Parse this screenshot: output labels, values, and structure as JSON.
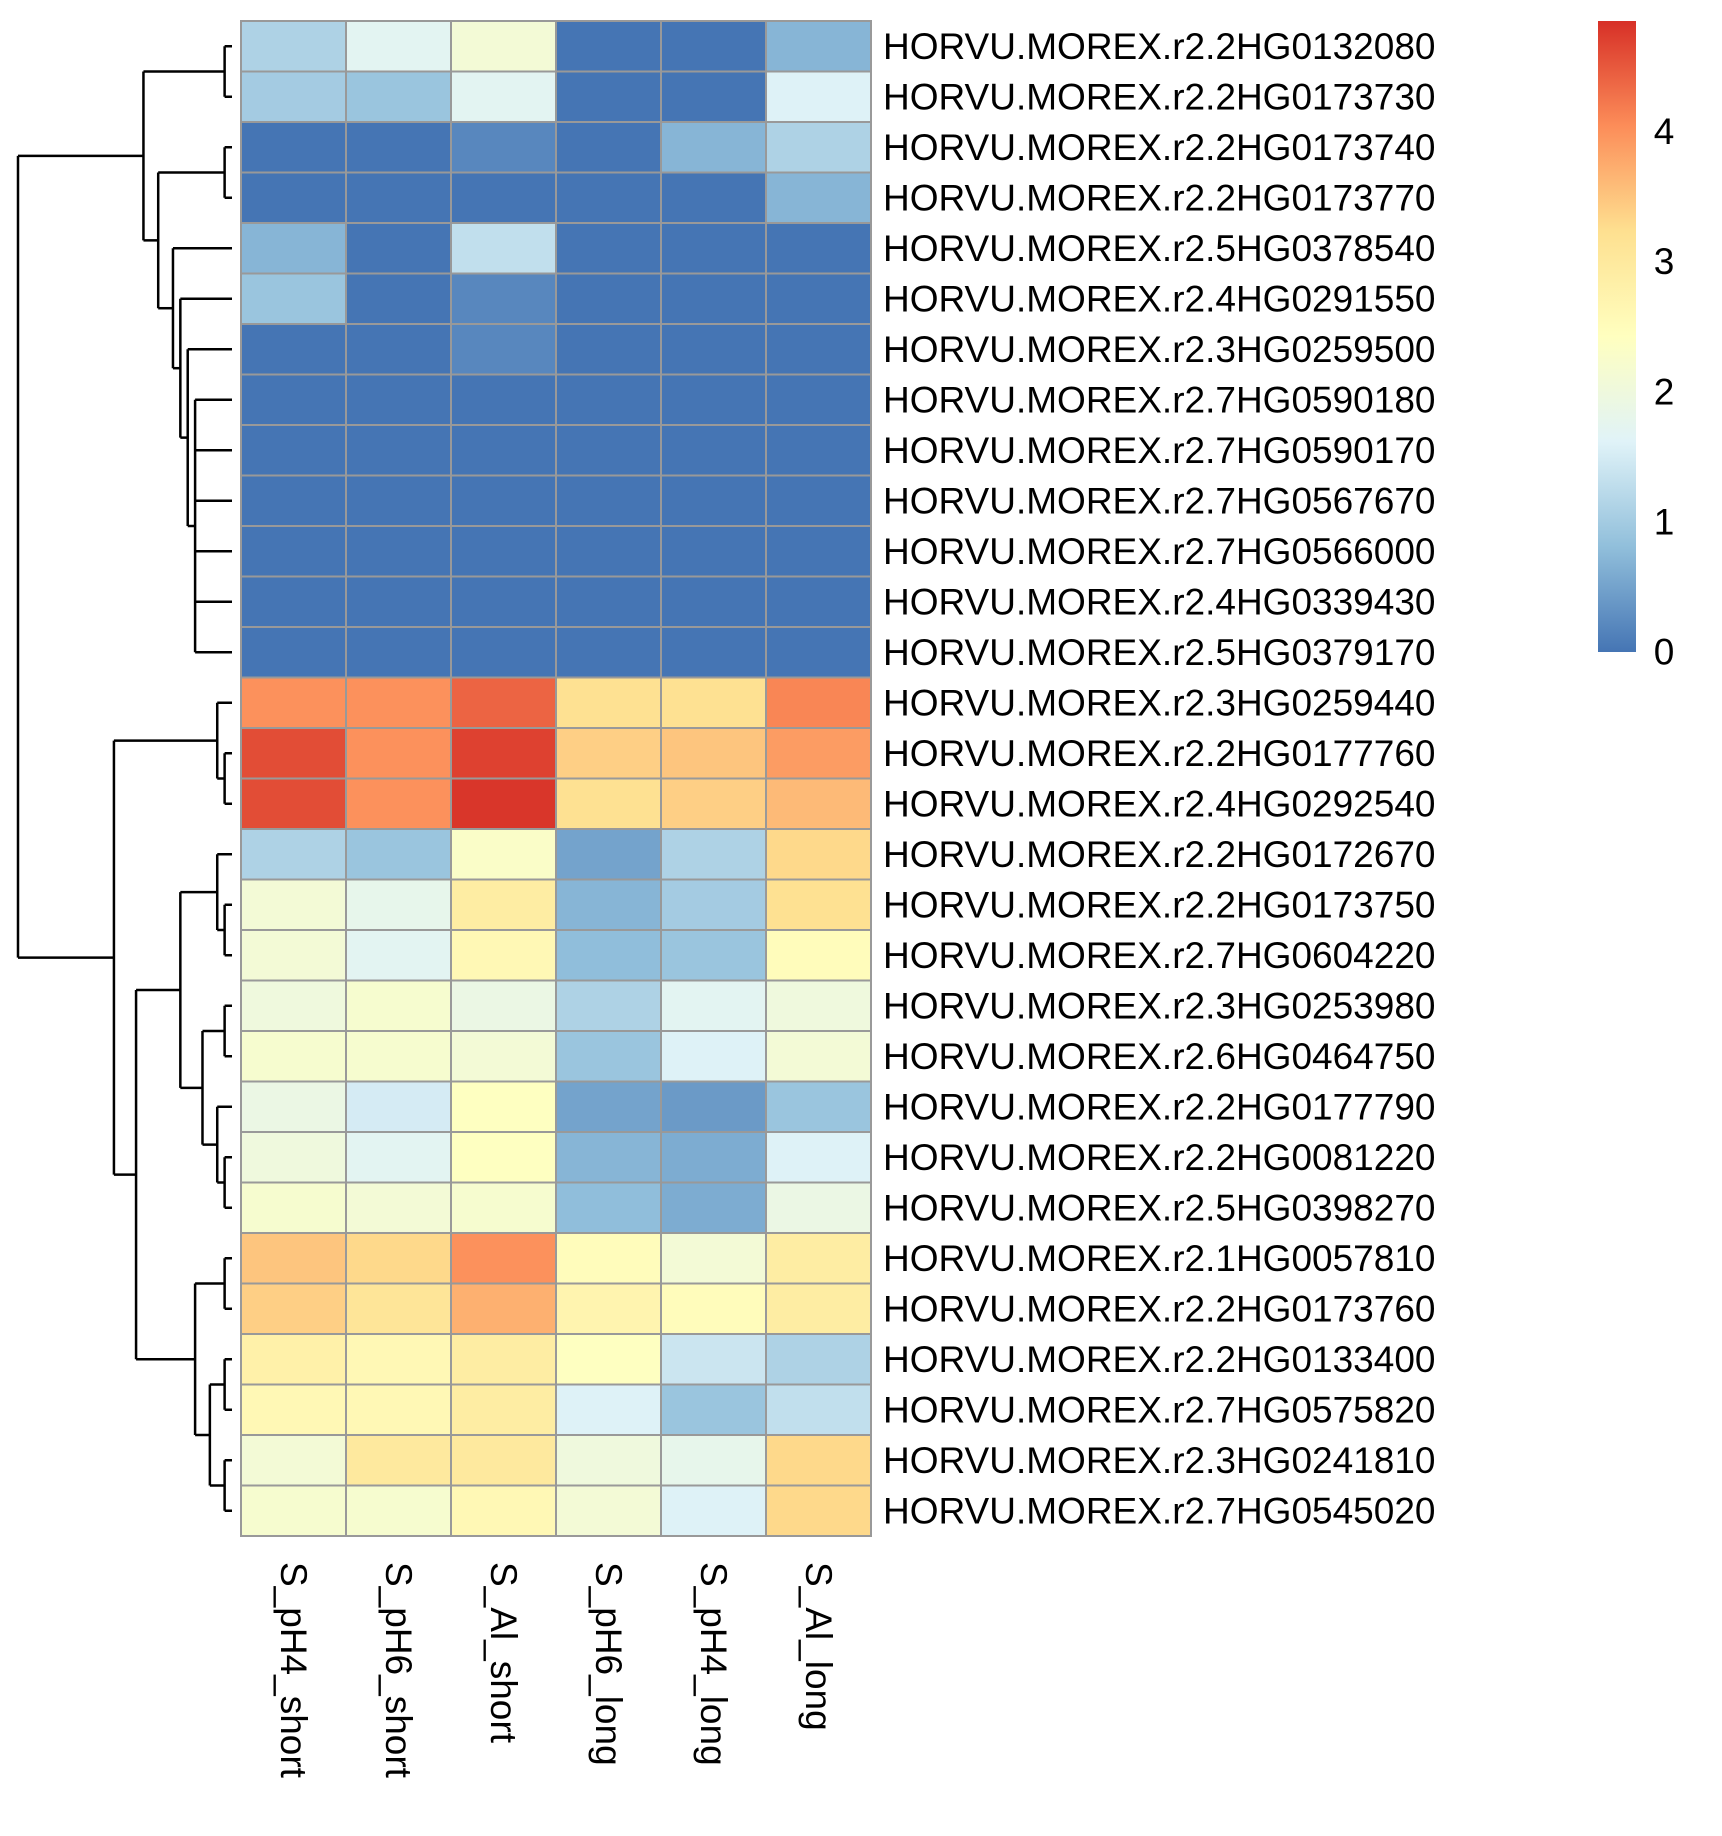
{
  "chart_data": {
    "type": "heatmap",
    "title": "",
    "xlabel": "",
    "ylabel": "",
    "columns": [
      "S_pH4_short",
      "S_pH6_short",
      "S_Al_short",
      "S_pH6_long",
      "S_pH4_long",
      "S_Al_long"
    ],
    "rows": [
      "HORVU.MOREX.r2.2HG0132080",
      "HORVU.MOREX.r2.2HG0173730",
      "HORVU.MOREX.r2.2HG0173740",
      "HORVU.MOREX.r2.2HG0173770",
      "HORVU.MOREX.r2.5HG0378540",
      "HORVU.MOREX.r2.4HG0291550",
      "HORVU.MOREX.r2.3HG0259500",
      "HORVU.MOREX.r2.7HG0590180",
      "HORVU.MOREX.r2.7HG0590170",
      "HORVU.MOREX.r2.7HG0567670",
      "HORVU.MOREX.r2.7HG0566000",
      "HORVU.MOREX.r2.4HG0339430",
      "HORVU.MOREX.r2.5HG0379170",
      "HORVU.MOREX.r2.3HG0259440",
      "HORVU.MOREX.r2.2HG0177760",
      "HORVU.MOREX.r2.4HG0292540",
      "HORVU.MOREX.r2.2HG0172670",
      "HORVU.MOREX.r2.2HG0173750",
      "HORVU.MOREX.r2.7HG0604220",
      "HORVU.MOREX.r2.3HG0253980",
      "HORVU.MOREX.r2.6HG0464750",
      "HORVU.MOREX.r2.2HG0177790",
      "HORVU.MOREX.r2.2HG0081220",
      "HORVU.MOREX.r2.5HG0398270",
      "HORVU.MOREX.r2.1HG0057810",
      "HORVU.MOREX.r2.2HG0173760",
      "HORVU.MOREX.r2.2HG0133400",
      "HORVU.MOREX.r2.7HG0575820",
      "HORVU.MOREX.r2.3HG0241810",
      "HORVU.MOREX.r2.7HG0545020"
    ],
    "values": [
      [
        1.1,
        1.7,
        2.1,
        0.0,
        0.0,
        0.7
      ],
      [
        1.0,
        0.9,
        1.7,
        0.0,
        0.0,
        1.6
      ],
      [
        0.0,
        0.0,
        0.2,
        0.0,
        0.7,
        1.1
      ],
      [
        0.0,
        0.0,
        0.0,
        0.0,
        0.0,
        0.7
      ],
      [
        0.7,
        0.0,
        1.3,
        0.0,
        0.0,
        0.0
      ],
      [
        0.9,
        0.0,
        0.2,
        0.0,
        0.0,
        0.0
      ],
      [
        0.0,
        0.0,
        0.2,
        0.0,
        0.0,
        0.0
      ],
      [
        0.0,
        0.0,
        0.0,
        0.0,
        0.0,
        0.0
      ],
      [
        0.0,
        0.0,
        0.0,
        0.0,
        0.0,
        0.0
      ],
      [
        0.0,
        0.0,
        0.0,
        0.0,
        0.0,
        0.0
      ],
      [
        0.0,
        0.0,
        0.0,
        0.0,
        0.0,
        0.0
      ],
      [
        0.0,
        0.0,
        0.0,
        0.0,
        0.0,
        0.0
      ],
      [
        0.0,
        0.0,
        0.0,
        0.0,
        0.0,
        0.0
      ],
      [
        4.0,
        4.0,
        4.4,
        3.2,
        3.2,
        4.1
      ],
      [
        4.6,
        4.0,
        4.7,
        3.4,
        3.5,
        3.9
      ],
      [
        4.6,
        4.0,
        4.8,
        3.2,
        3.4,
        3.6
      ],
      [
        1.1,
        0.9,
        2.3,
        0.5,
        1.1,
        3.3
      ],
      [
        2.1,
        1.8,
        2.9,
        0.7,
        1.0,
        3.2
      ],
      [
        2.1,
        1.7,
        2.6,
        0.8,
        0.9,
        2.5
      ],
      [
        2.0,
        2.2,
        1.9,
        1.1,
        1.7,
        2.0
      ],
      [
        2.2,
        2.2,
        2.1,
        0.9,
        1.6,
        2.1
      ],
      [
        1.9,
        1.5,
        2.4,
        0.5,
        0.4,
        0.9
      ],
      [
        2.0,
        1.7,
        2.4,
        0.7,
        0.6,
        1.6
      ],
      [
        2.2,
        2.1,
        2.2,
        0.8,
        0.6,
        1.9
      ],
      [
        3.5,
        3.3,
        4.0,
        2.5,
        2.1,
        2.9
      ],
      [
        3.4,
        3.1,
        3.7,
        2.7,
        2.5,
        2.9
      ],
      [
        2.8,
        2.6,
        2.9,
        2.4,
        1.4,
        1.1
      ],
      [
        2.6,
        2.6,
        2.9,
        1.6,
        0.9,
        1.3
      ],
      [
        2.1,
        3.0,
        3.0,
        2.0,
        1.8,
        3.3
      ],
      [
        2.2,
        2.2,
        2.6,
        2.1,
        1.6,
        3.3
      ]
    ],
    "colorbar": {
      "min": 0,
      "max": 4.85,
      "ticks": [
        0,
        1,
        2,
        3,
        4
      ],
      "tick_labels": [
        "0",
        "1",
        "2",
        "3",
        "4"
      ],
      "colors": [
        "#4575b4",
        "#91bfdb",
        "#e0f3f8",
        "#ffffbf",
        "#fee090",
        "#fc8d59",
        "#d73027"
      ]
    },
    "cell_border_color": "#999999",
    "row_dendrogram": {
      "clusters": [
        {
          "rows": [
            0,
            1
          ]
        },
        {
          "rows": [
            2,
            3
          ]
        },
        {
          "rows": [
            7,
            8,
            9,
            10,
            11,
            12
          ]
        },
        {
          "rows": [
            6,
            7,
            8,
            9,
            10,
            11,
            12
          ]
        },
        {
          "rows": [
            5,
            6,
            7,
            8,
            9,
            10,
            11,
            12
          ]
        },
        {
          "rows": [
            4,
            5,
            6,
            7,
            8,
            9,
            10,
            11,
            12
          ]
        },
        {
          "rows": [
            2,
            3,
            4,
            5,
            6,
            7,
            8,
            9,
            10,
            11,
            12
          ]
        },
        {
          "rows": [
            0,
            1,
            2,
            3,
            4,
            5,
            6,
            7,
            8,
            9,
            10,
            11,
            12
          ]
        },
        {
          "rows": [
            14,
            15
          ]
        },
        {
          "rows": [
            13,
            14,
            15
          ]
        },
        {
          "rows": [
            17,
            18
          ]
        },
        {
          "rows": [
            16,
            17,
            18
          ]
        },
        {
          "rows": [
            19,
            20
          ]
        },
        {
          "rows": [
            22,
            23
          ]
        },
        {
          "rows": [
            21,
            22,
            23
          ]
        },
        {
          "rows": [
            19,
            20,
            21,
            22,
            23
          ]
        },
        {
          "rows": [
            16,
            17,
            18,
            19,
            20,
            21,
            22,
            23
          ]
        },
        {
          "rows": [
            24,
            25
          ]
        },
        {
          "rows": [
            26,
            27
          ]
        },
        {
          "rows": [
            28,
            29
          ]
        },
        {
          "rows": [
            26,
            27,
            28,
            29
          ]
        },
        {
          "rows": [
            24,
            25,
            26,
            27,
            28,
            29
          ]
        },
        {
          "rows": [
            16,
            17,
            18,
            19,
            20,
            21,
            22,
            23,
            24,
            25,
            26,
            27,
            28,
            29
          ]
        },
        {
          "rows": [
            13,
            14,
            15,
            16,
            17,
            18,
            19,
            20,
            21,
            22,
            23,
            24,
            25,
            26,
            27,
            28,
            29
          ]
        },
        {
          "rows": [
            0,
            1,
            2,
            3,
            4,
            5,
            6,
            7,
            8,
            9,
            10,
            11,
            12,
            13,
            14,
            15,
            16,
            17,
            18,
            19,
            20,
            21,
            22,
            23,
            24,
            25,
            26,
            27,
            28,
            29
          ]
        }
      ]
    }
  }
}
